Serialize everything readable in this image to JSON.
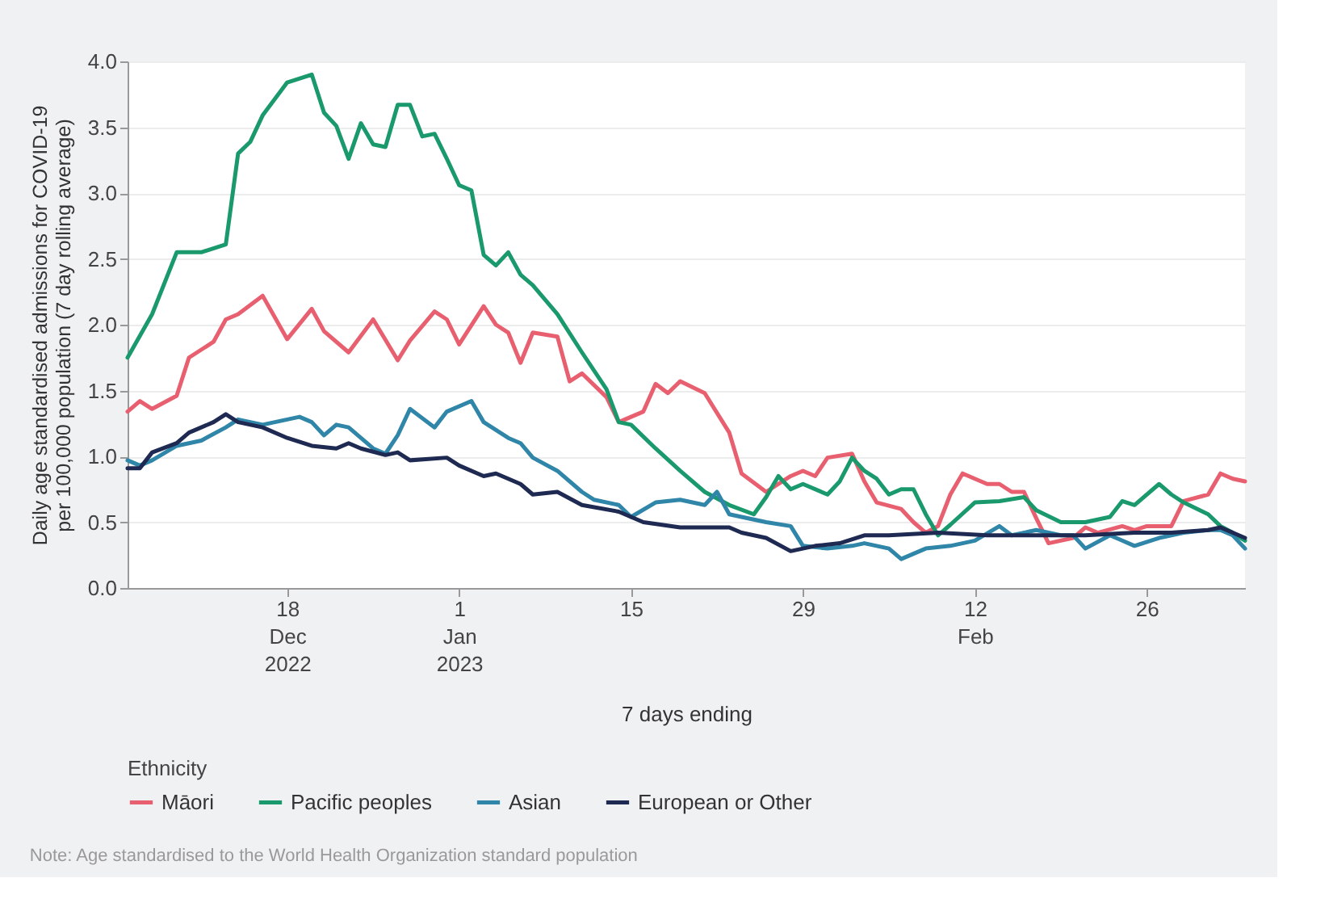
{
  "chart_data": {
    "type": "line",
    "xlabel": "7 days ending",
    "ylabel": "Daily age standardised admissions for COVID-19 per 100,000 population (7 day rolling average)",
    "legend_title": "Ethnicity",
    "annotations": [
      "Note: Age standardised to the World Health Organization standard population"
    ],
    "xlim": [
      "2022-12-05",
      "2023-03-06"
    ],
    "xticks": [
      {
        "value": "2022-12-18",
        "label": "18\nDec\n2022"
      },
      {
        "value": "2023-01-01",
        "label": "1\nJan\n2023"
      },
      {
        "value": "2023-01-15",
        "label": "15"
      },
      {
        "value": "2023-01-29",
        "label": "29"
      },
      {
        "value": "2023-02-12",
        "label": "12\nFeb"
      },
      {
        "value": "2023-02-26",
        "label": "26"
      }
    ],
    "ylim": [
      0,
      4
    ],
    "yticks": [
      {
        "value": 0,
        "label": "0.0"
      },
      0.5,
      {
        "value": 1,
        "label": "1.0"
      },
      1.5,
      {
        "value": 2,
        "label": "2.0"
      },
      2.5,
      {
        "value": 3,
        "label": "3.0"
      },
      3.5,
      {
        "value": 4,
        "label": "4.0"
      }
    ],
    "grid": "y",
    "legend": "bottom",
    "marker": "none",
    "line_style": "solid",
    "series": [
      {
        "name": "Māori",
        "color": "#e8606f",
        "x": [
          "2022-12-05",
          "2022-12-06",
          "2022-12-07",
          "2022-12-09",
          "2022-12-10",
          "2022-12-12",
          "2022-12-13",
          "2022-12-14",
          "2022-12-16",
          "2022-12-18",
          "2022-12-20",
          "2022-12-21",
          "2022-12-23",
          "2022-12-25",
          "2022-12-27",
          "2022-12-28",
          "2022-12-30",
          "2022-12-31",
          "2023-01-01",
          "2023-01-03",
          "2023-01-04",
          "2023-01-05",
          "2023-01-06",
          "2023-01-07",
          "2023-01-09",
          "2023-01-10",
          "2023-01-11",
          "2023-01-13",
          "2023-01-14",
          "2023-01-16",
          "2023-01-17",
          "2023-01-18",
          "2023-01-19",
          "2023-01-21",
          "2023-01-23",
          "2023-01-24",
          "2023-01-26",
          "2023-01-28",
          "2023-01-29",
          "2023-01-30",
          "2023-01-31",
          "2023-02-02",
          "2023-02-03",
          "2023-02-04",
          "2023-02-06",
          "2023-02-07",
          "2023-02-08",
          "2023-02-09",
          "2023-02-10",
          "2023-02-11",
          "2023-02-13",
          "2023-02-14",
          "2023-02-15",
          "2023-02-16",
          "2023-02-17",
          "2023-02-18",
          "2023-02-20",
          "2023-02-21",
          "2023-02-22",
          "2023-02-24",
          "2023-02-25",
          "2023-02-26",
          "2023-02-28",
          "2023-03-01",
          "2023-03-03",
          "2023-03-04",
          "2023-03-05",
          "2023-03-06"
        ],
        "values": [
          1.34,
          1.42,
          1.36,
          1.46,
          1.75,
          1.87,
          2.04,
          2.08,
          2.22,
          1.89,
          2.12,
          1.95,
          1.79,
          2.04,
          1.73,
          1.88,
          2.1,
          2.04,
          1.85,
          2.14,
          2.0,
          1.94,
          1.71,
          1.94,
          1.91,
          1.57,
          1.63,
          1.45,
          1.26,
          1.34,
          1.55,
          1.48,
          1.57,
          1.48,
          1.18,
          0.87,
          0.73,
          0.85,
          0.89,
          0.85,
          0.99,
          1.02,
          0.81,
          0.65,
          0.6,
          0.5,
          0.42,
          0.47,
          0.71,
          0.87,
          0.79,
          0.79,
          0.73,
          0.73,
          0.53,
          0.34,
          0.38,
          0.46,
          0.42,
          0.47,
          0.44,
          0.47,
          0.47,
          0.66,
          0.71,
          0.87,
          0.83,
          0.81
        ]
      },
      {
        "name": "Pacific peoples",
        "color": "#1a9a6c",
        "x": [
          "2022-12-05",
          "2022-12-07",
          "2022-12-09",
          "2022-12-11",
          "2022-12-13",
          "2022-12-14",
          "2022-12-15",
          "2022-12-16",
          "2022-12-18",
          "2022-12-20",
          "2022-12-21",
          "2022-12-22",
          "2022-12-23",
          "2022-12-24",
          "2022-12-25",
          "2022-12-26",
          "2022-12-27",
          "2022-12-28",
          "2022-12-29",
          "2022-12-30",
          "2022-12-31",
          "2023-01-01",
          "2023-01-02",
          "2023-01-03",
          "2023-01-04",
          "2023-01-05",
          "2023-01-06",
          "2023-01-07",
          "2023-01-09",
          "2023-01-11",
          "2023-01-13",
          "2023-01-14",
          "2023-01-15",
          "2023-01-17",
          "2023-01-19",
          "2023-01-21",
          "2023-01-23",
          "2023-01-25",
          "2023-01-26",
          "2023-01-27",
          "2023-01-28",
          "2023-01-29",
          "2023-01-31",
          "2023-02-01",
          "2023-02-02",
          "2023-02-03",
          "2023-02-04",
          "2023-02-05",
          "2023-02-06",
          "2023-02-07",
          "2023-02-08",
          "2023-02-09",
          "2023-02-10",
          "2023-02-12",
          "2023-02-14",
          "2023-02-16",
          "2023-02-17",
          "2023-02-19",
          "2023-02-21",
          "2023-02-23",
          "2023-02-24",
          "2023-02-25",
          "2023-02-27",
          "2023-02-28",
          "2023-03-01",
          "2023-03-03",
          "2023-03-04",
          "2023-03-05",
          "2023-03-06"
        ],
        "values": [
          1.75,
          2.08,
          2.55,
          2.55,
          2.61,
          3.3,
          3.39,
          3.59,
          3.84,
          3.9,
          3.61,
          3.51,
          3.26,
          3.53,
          3.37,
          3.35,
          3.67,
          3.67,
          3.43,
          3.45,
          3.26,
          3.06,
          3.02,
          2.53,
          2.45,
          2.55,
          2.38,
          2.3,
          2.08,
          1.79,
          1.51,
          1.26,
          1.24,
          1.06,
          0.89,
          0.73,
          0.63,
          0.56,
          0.69,
          0.85,
          0.75,
          0.79,
          0.71,
          0.81,
          0.99,
          0.89,
          0.83,
          0.71,
          0.75,
          0.75,
          0.56,
          0.4,
          0.48,
          0.65,
          0.66,
          0.69,
          0.59,
          0.5,
          0.5,
          0.54,
          0.66,
          0.63,
          0.79,
          0.71,
          0.65,
          0.56,
          0.47,
          0.42,
          0.36
        ]
      },
      {
        "name": "Asian",
        "color": "#3086a8",
        "x": [
          "2022-12-05",
          "2022-12-06",
          "2022-12-07",
          "2022-12-09",
          "2022-12-11",
          "2022-12-13",
          "2022-12-14",
          "2022-12-16",
          "2022-12-19",
          "2022-12-20",
          "2022-12-21",
          "2022-12-22",
          "2022-12-23",
          "2022-12-25",
          "2022-12-26",
          "2022-12-27",
          "2022-12-28",
          "2022-12-30",
          "2022-12-31",
          "2023-01-02",
          "2023-01-03",
          "2023-01-05",
          "2023-01-06",
          "2023-01-07",
          "2023-01-09",
          "2023-01-11",
          "2023-01-12",
          "2023-01-14",
          "2023-01-15",
          "2023-01-17",
          "2023-01-19",
          "2023-01-21",
          "2023-01-22",
          "2023-01-23",
          "2023-01-26",
          "2023-01-28",
          "2023-01-29",
          "2023-01-31",
          "2023-02-02",
          "2023-02-03",
          "2023-02-05",
          "2023-02-06",
          "2023-02-08",
          "2023-02-10",
          "2023-02-12",
          "2023-02-14",
          "2023-02-15",
          "2023-02-17",
          "2023-02-19",
          "2023-02-20",
          "2023-02-21",
          "2023-02-23",
          "2023-02-24",
          "2023-02-25",
          "2023-02-27",
          "2023-03-01",
          "2023-03-03",
          "2023-03-04",
          "2023-03-05",
          "2023-03-06"
        ],
        "values": [
          0.97,
          0.93,
          0.97,
          1.08,
          1.12,
          1.22,
          1.28,
          1.24,
          1.3,
          1.26,
          1.16,
          1.24,
          1.22,
          1.06,
          1.02,
          1.16,
          1.36,
          1.22,
          1.34,
          1.42,
          1.26,
          1.14,
          1.1,
          0.99,
          0.89,
          0.73,
          0.67,
          0.63,
          0.54,
          0.65,
          0.67,
          0.63,
          0.73,
          0.56,
          0.5,
          0.47,
          0.32,
          0.3,
          0.32,
          0.34,
          0.3,
          0.22,
          0.3,
          0.32,
          0.36,
          0.47,
          0.4,
          0.44,
          0.4,
          0.4,
          0.3,
          0.4,
          0.36,
          0.32,
          0.38,
          0.42,
          0.44,
          0.44,
          0.4,
          0.3
        ]
      },
      {
        "name": "European or Other",
        "color": "#1f2a52",
        "x": [
          "2022-12-05",
          "2022-12-06",
          "2022-12-07",
          "2022-12-09",
          "2022-12-10",
          "2022-12-12",
          "2022-12-13",
          "2022-12-14",
          "2022-12-16",
          "2022-12-18",
          "2022-12-20",
          "2022-12-22",
          "2022-12-23",
          "2022-12-24",
          "2022-12-26",
          "2022-12-27",
          "2022-12-28",
          "2022-12-31",
          "2023-01-01",
          "2023-01-03",
          "2023-01-04",
          "2023-01-06",
          "2023-01-07",
          "2023-01-09",
          "2023-01-11",
          "2023-01-14",
          "2023-01-16",
          "2023-01-19",
          "2023-01-20",
          "2023-01-23",
          "2023-01-24",
          "2023-01-26",
          "2023-01-28",
          "2023-01-30",
          "2023-02-01",
          "2023-02-03",
          "2023-02-05",
          "2023-02-09",
          "2023-02-13",
          "2023-02-16",
          "2023-02-21",
          "2023-02-25",
          "2023-02-28",
          "2023-03-03",
          "2023-03-04",
          "2023-03-05",
          "2023-03-06"
        ],
        "values": [
          0.91,
          0.91,
          1.03,
          1.1,
          1.18,
          1.26,
          1.32,
          1.26,
          1.22,
          1.14,
          1.08,
          1.06,
          1.1,
          1.06,
          1.01,
          1.03,
          0.97,
          0.99,
          0.93,
          0.85,
          0.87,
          0.79,
          0.71,
          0.73,
          0.63,
          0.58,
          0.5,
          0.46,
          0.46,
          0.46,
          0.42,
          0.38,
          0.28,
          0.32,
          0.34,
          0.4,
          0.4,
          0.42,
          0.4,
          0.4,
          0.4,
          0.42,
          0.42,
          0.44,
          0.46,
          0.42,
          0.38
        ]
      }
    ]
  }
}
